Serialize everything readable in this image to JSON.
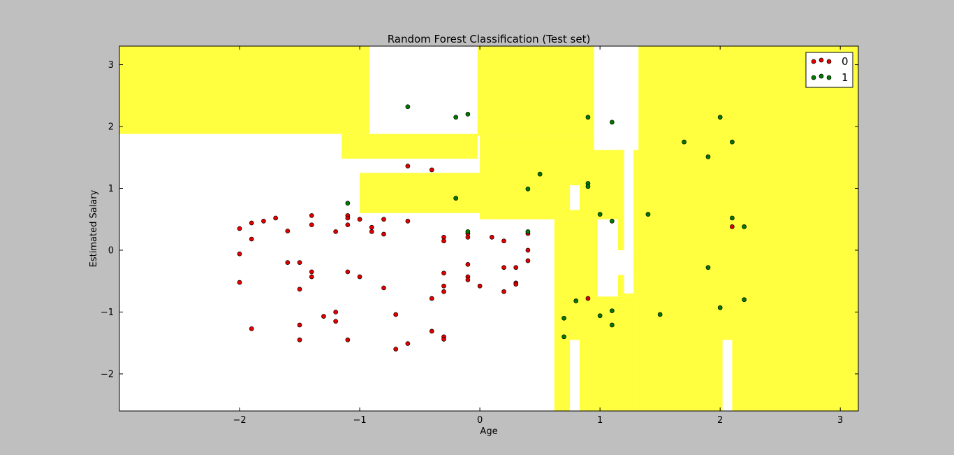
{
  "chart_data": {
    "type": "scatter",
    "title": "Random Forest Classification (Test set)",
    "xlabel": "Age",
    "ylabel": "Estimated Salary",
    "xlim": [
      -3.0,
      3.15
    ],
    "ylim": [
      -2.6,
      3.3
    ],
    "xticks": [
      {
        "v": -2,
        "label": "−2"
      },
      {
        "v": -1,
        "label": "−1"
      },
      {
        "v": 0,
        "label": "0"
      },
      {
        "v": 1,
        "label": "1"
      },
      {
        "v": 2,
        "label": "2"
      },
      {
        "v": 3,
        "label": "3"
      }
    ],
    "yticks": [
      {
        "v": -2,
        "label": "−2"
      },
      {
        "v": -1,
        "label": "−1"
      },
      {
        "v": 0,
        "label": "0"
      },
      {
        "v": 1,
        "label": "1"
      },
      {
        "v": 2,
        "label": "2"
      },
      {
        "v": 3,
        "label": "3"
      }
    ],
    "grid": false,
    "legend_position": "top-right",
    "background_regions": {
      "class_0_color": "#ffffff",
      "class_1_color": "#ffff40",
      "class_1_regions": [
        {
          "x": [
            -3.0,
            -0.92
          ],
          "y": [
            1.88,
            3.3
          ]
        },
        {
          "x": [
            -1.15,
            -0.02
          ],
          "y": [
            1.48,
            1.88
          ]
        },
        {
          "x": [
            -1.0,
            0.7
          ],
          "y": [
            0.6,
            1.25
          ]
        },
        {
          "x": [
            -0.02,
            0.95
          ],
          "y": [
            1.85,
            3.3
          ]
        },
        {
          "x": [
            0.0,
            1.25
          ],
          "y": [
            0.5,
            1.85
          ]
        },
        {
          "x": [
            0.62,
            0.98
          ],
          "y": [
            -2.6,
            0.5
          ]
        },
        {
          "x": [
            0.83,
            1.3
          ],
          "y": [
            -2.6,
            -0.75
          ]
        },
        {
          "x": [
            1.3,
            3.15
          ],
          "y": [
            -2.6,
            3.3
          ]
        },
        {
          "x": [
            1.15,
            1.3
          ],
          "y": [
            -0.75,
            1.62
          ]
        }
      ],
      "class_0_regions": [
        {
          "x": [
            0.75,
            0.83
          ],
          "y": [
            -2.6,
            -1.45
          ]
        },
        {
          "x": [
            2.02,
            2.1
          ],
          "y": [
            -2.6,
            -1.45
          ]
        },
        {
          "x": [
            0.95,
            1.32
          ],
          "y": [
            1.62,
            3.3
          ]
        },
        {
          "x": [
            1.2,
            1.28
          ],
          "y": [
            -0.7,
            1.62
          ]
        },
        {
          "x": [
            0.75,
            0.83
          ],
          "y": [
            0.65,
            1.05
          ]
        },
        {
          "x": [
            1.0,
            1.2
          ],
          "y": [
            -0.4,
            0.0
          ]
        }
      ]
    },
    "series": [
      {
        "name": "0",
        "color": "#e00000",
        "points": [
          [
            -2.0,
            0.35
          ],
          [
            -2.0,
            -0.06
          ],
          [
            -2.0,
            -0.52
          ],
          [
            -1.9,
            0.44
          ],
          [
            -1.9,
            0.18
          ],
          [
            -1.9,
            -1.27
          ],
          [
            -1.8,
            0.47
          ],
          [
            -1.7,
            0.52
          ],
          [
            -1.6,
            0.31
          ],
          [
            -1.6,
            -0.2
          ],
          [
            -1.5,
            -0.2
          ],
          [
            -1.5,
            -0.63
          ],
          [
            -1.5,
            -1.21
          ],
          [
            -1.5,
            -1.45
          ],
          [
            -1.4,
            0.56
          ],
          [
            -1.4,
            0.41
          ],
          [
            -1.4,
            -0.35
          ],
          [
            -1.4,
            -0.43
          ],
          [
            -1.3,
            -1.07
          ],
          [
            -1.2,
            0.3
          ],
          [
            -1.2,
            -1.0
          ],
          [
            -1.2,
            -1.15
          ],
          [
            -1.1,
            0.56
          ],
          [
            -1.1,
            0.52
          ],
          [
            -1.1,
            0.41
          ],
          [
            -1.1,
            -0.35
          ],
          [
            -1.1,
            -1.45
          ],
          [
            -1.0,
            0.5
          ],
          [
            -1.0,
            -0.43
          ],
          [
            -0.9,
            0.37
          ],
          [
            -0.9,
            0.3
          ],
          [
            -0.8,
            0.5
          ],
          [
            -0.8,
            0.26
          ],
          [
            -0.8,
            -0.61
          ],
          [
            -0.7,
            -1.04
          ],
          [
            -0.7,
            -1.6
          ],
          [
            -0.6,
            1.36
          ],
          [
            -0.6,
            0.47
          ],
          [
            -0.6,
            -1.51
          ],
          [
            -0.4,
            1.3
          ],
          [
            -0.4,
            -0.78
          ],
          [
            -0.4,
            -1.31
          ],
          [
            -0.3,
            0.21
          ],
          [
            -0.3,
            0.15
          ],
          [
            -0.3,
            -0.37
          ],
          [
            -0.3,
            -0.58
          ],
          [
            -0.3,
            -0.67
          ],
          [
            -0.3,
            -1.4
          ],
          [
            -0.3,
            -1.44
          ],
          [
            -0.1,
            0.27
          ],
          [
            -0.1,
            0.21
          ],
          [
            -0.1,
            -0.23
          ],
          [
            -0.1,
            -0.43
          ],
          [
            -0.1,
            -0.48
          ],
          [
            0.0,
            -0.58
          ],
          [
            0.1,
            0.21
          ],
          [
            0.2,
            0.15
          ],
          [
            0.2,
            -0.28
          ],
          [
            0.2,
            -0.67
          ],
          [
            0.3,
            -0.28
          ],
          [
            0.3,
            -0.53
          ],
          [
            0.3,
            -0.55
          ],
          [
            0.4,
            0.27
          ],
          [
            0.4,
            0.0
          ],
          [
            0.4,
            -0.17
          ],
          [
            0.9,
            -0.78
          ],
          [
            2.1,
            0.38
          ]
        ]
      },
      {
        "name": "1",
        "color": "#007a00",
        "points": [
          [
            -0.6,
            2.32
          ],
          [
            -0.2,
            2.15
          ],
          [
            -0.1,
            2.2
          ],
          [
            -0.2,
            0.84
          ],
          [
            -1.1,
            0.76
          ],
          [
            -0.1,
            0.3
          ],
          [
            0.4,
            0.99
          ],
          [
            0.4,
            0.3
          ],
          [
            0.5,
            1.23
          ],
          [
            0.7,
            -1.1
          ],
          [
            0.7,
            -1.4
          ],
          [
            0.8,
            -0.82
          ],
          [
            0.9,
            2.15
          ],
          [
            0.9,
            1.08
          ],
          [
            0.9,
            1.03
          ],
          [
            1.0,
            0.58
          ],
          [
            1.0,
            -1.06
          ],
          [
            1.1,
            2.07
          ],
          [
            1.1,
            0.47
          ],
          [
            1.1,
            -0.98
          ],
          [
            1.1,
            -1.21
          ],
          [
            1.4,
            0.58
          ],
          [
            1.5,
            -1.04
          ],
          [
            1.7,
            1.75
          ],
          [
            1.9,
            1.51
          ],
          [
            1.9,
            -0.28
          ],
          [
            2.0,
            2.15
          ],
          [
            2.0,
            -0.93
          ],
          [
            2.1,
            1.75
          ],
          [
            2.1,
            0.52
          ],
          [
            2.2,
            0.38
          ],
          [
            2.2,
            -0.8
          ]
        ]
      }
    ]
  }
}
